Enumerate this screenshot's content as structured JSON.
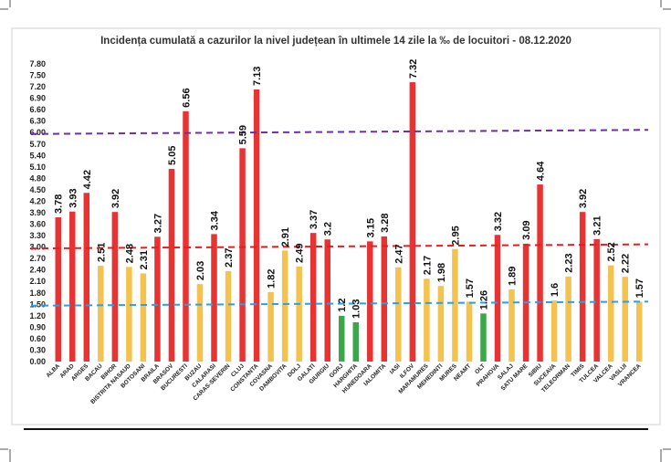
{
  "chart_data": {
    "type": "bar",
    "title": "Incidența cumulată a cazurilor la nivel județean în ultimele 14 zile la ‰ de locuitori - 08.12.2020",
    "xlabel": "",
    "ylabel": "",
    "ylim": [
      0,
      7.8
    ],
    "yticks": [
      "0.00",
      "0.30",
      "0.60",
      "0.90",
      "1.20",
      "1.50",
      "1.80",
      "2.10",
      "2.40",
      "2.70",
      "3.00",
      "3.30",
      "3.60",
      "3.90",
      "4.20",
      "4.50",
      "4.80",
      "5.10",
      "5.40",
      "5.70",
      "6.00",
      "6.30",
      "6.60",
      "6.90",
      "7.20",
      "7.50",
      "7.80"
    ],
    "grid": false,
    "legend": "none",
    "categories": [
      "ALBA",
      "ARAD",
      "ARGES",
      "BACAU",
      "BIHOR",
      "BISTRITA NASAUD",
      "BOTOSANI",
      "BRAILA",
      "BRASOV",
      "BUCURESTI",
      "BUZAU",
      "CALARASI",
      "CARAS-SEVERIN",
      "CLUJ",
      "CONSTANTA",
      "COVASNA",
      "DAMBOVITA",
      "DOLJ",
      "GALATI",
      "GIURGIU",
      "GORJ",
      "HARGHITA",
      "HUNEDOARA",
      "IALOMITA",
      "IASI",
      "ILFOV",
      "MARAMURES",
      "MEHEDINTI",
      "MURES",
      "NEAMT",
      "OLT",
      "PRAHOVA",
      "SALAJ",
      "SATU MARE",
      "SIBIU",
      "SUCEAVA",
      "TELEORMAN",
      "TIMIS",
      "TULCEA",
      "VALCEA",
      "VASLUI",
      "VRANCEA"
    ],
    "values": [
      3.78,
      3.93,
      4.42,
      2.51,
      3.92,
      2.48,
      2.31,
      3.27,
      5.05,
      6.56,
      2.03,
      3.34,
      2.37,
      5.59,
      7.13,
      1.82,
      2.91,
      2.49,
      3.37,
      3.2,
      1.2,
      1.03,
      3.15,
      3.28,
      2.47,
      7.32,
      2.17,
      1.98,
      2.95,
      1.57,
      1.26,
      3.32,
      1.89,
      3.09,
      4.64,
      1.6,
      2.23,
      3.92,
      3.21,
      2.52,
      2.22,
      1.57
    ],
    "value_labels": [
      "3.78",
      "3.93",
      "4.42",
      "2.51",
      "3.92",
      "2.48",
      "2.31",
      "3.27",
      "5.05",
      "6.56",
      "2.03",
      "3.34",
      "2.37",
      "5.59",
      "7.13",
      "1.82",
      "2.91",
      "2.49",
      "3.37",
      "3.2",
      "1.2",
      "1.03",
      "3.15",
      "3.28",
      "2.47",
      "7.32",
      "2.17",
      "1.98",
      "2.95",
      "1.57",
      "1.26",
      "3.32",
      "1.89",
      "3.09",
      "4.64",
      "1.6",
      "2.23",
      "3.92",
      "3.21",
      "2.52",
      "2.22",
      "1.57"
    ],
    "thresholds": [
      {
        "value": 6.0,
        "color": "#7030a0"
      },
      {
        "value": 3.0,
        "color": "#e02020"
      },
      {
        "value": 1.5,
        "color": "#2f9fe0"
      }
    ],
    "colors": {
      "high": "#e83333",
      "mid": "#f4c24e",
      "low": "#3aa84a"
    }
  }
}
